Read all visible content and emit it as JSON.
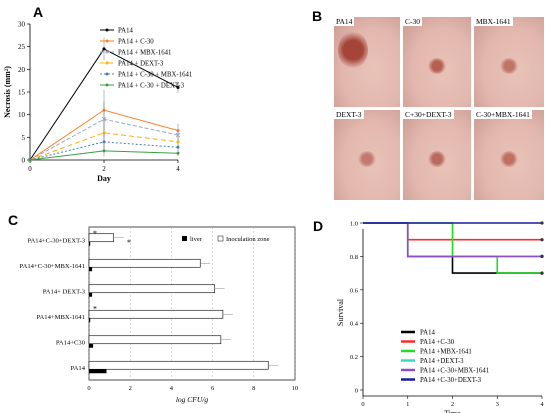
{
  "panel_letters": {
    "a": "A",
    "b": "B",
    "c": "C",
    "d": "D"
  },
  "chart_data": [
    {
      "panel": "A",
      "type": "line",
      "x": [
        0,
        2,
        4
      ],
      "xlabel": "Day",
      "ylabel": "Necrosis (mm²)",
      "ylim": [
        0,
        30
      ],
      "yticks": [
        "0",
        "5",
        "10",
        "15",
        "20",
        "25",
        "30"
      ],
      "xticks": [
        "0",
        "2",
        "4"
      ],
      "legend_position": "top-right",
      "series": [
        {
          "name": "PA14",
          "values": [
            0,
            24.5,
            16
          ],
          "color": "#000000",
          "dash": "",
          "marker": "circle"
        },
        {
          "name": "PA14 + C-30",
          "values": [
            0,
            11,
            6.5
          ],
          "color": "#ff7f27",
          "dash": "",
          "marker": "circle"
        },
        {
          "name": "PA14 + MBX-1641",
          "values": [
            0,
            9,
            5.5
          ],
          "color": "#9aa9c8",
          "dash": "4,2",
          "marker": "x"
        },
        {
          "name": "PA14 + DEXT-3",
          "values": [
            0,
            6,
            4
          ],
          "color": "#ffb000",
          "dash": "5,3",
          "marker": "circle"
        },
        {
          "name": "PA14 + C-30 + MBX-1641",
          "values": [
            0,
            4,
            2.8
          ],
          "color": "#4a7db8",
          "dash": "2,2",
          "marker": "circle"
        },
        {
          "name": "PA14 + C-30 + DEXT-3",
          "values": [
            0,
            2,
            1.5
          ],
          "color": "#3aa040",
          "dash": "",
          "marker": "circle"
        }
      ]
    },
    {
      "panel": "C",
      "type": "bar",
      "orientation": "horizontal",
      "categories": [
        "PA14+C-30+DEXT-3",
        "PA14+C-30+MBX-1641",
        "PA14+ DEXT-3",
        "PA14+MBX-1641",
        "PA14+C30",
        "PA14"
      ],
      "xlabel": "log CFU/g",
      "xlim": [
        0,
        10
      ],
      "xticks": [
        "0",
        "2",
        "4",
        "6",
        "8",
        "10"
      ],
      "legend_position": "top-right",
      "annotations": [
        "*",
        "*",
        "*"
      ],
      "series": [
        {
          "name": "liver",
          "color": "#000000",
          "values": [
            0.05,
            0.15,
            0.15,
            0.05,
            0.2,
            0.85
          ]
        },
        {
          "name": "Inoculation zone",
          "color": "#ffffff",
          "values": [
            1.2,
            5.4,
            6.1,
            6.5,
            6.4,
            8.7
          ]
        }
      ]
    },
    {
      "panel": "D",
      "type": "line",
      "step": true,
      "x": [
        0,
        1,
        2,
        3,
        4
      ],
      "xlabel": "Time",
      "ylabel": "Survival",
      "xlim": [
        0,
        4
      ],
      "ylim": [
        0,
        1.0
      ],
      "xticks": [
        "0",
        "1",
        "2",
        "3",
        "4"
      ],
      "yticks": [
        "0",
        "0.2",
        "0.4",
        "0.6",
        "0.8",
        "1.0"
      ],
      "legend_position": "bottom-center",
      "series": [
        {
          "name": "PA14",
          "color": "#000000",
          "steps": [
            [
              0,
              1.0
            ],
            [
              1,
              0.8
            ],
            [
              2,
              0.7
            ],
            [
              4,
              0.7
            ]
          ]
        },
        {
          "name": "PA14 +C-30",
          "color": "#ff2a2a",
          "steps": [
            [
              0,
              1.0
            ],
            [
              1,
              0.9
            ],
            [
              4,
              0.9
            ]
          ]
        },
        {
          "name": "PA14 +MBX-1641",
          "color": "#22dd22",
          "steps": [
            [
              0,
              1.0
            ],
            [
              2,
              0.8
            ],
            [
              3,
              0.7
            ],
            [
              4,
              0.7
            ]
          ]
        },
        {
          "name": "PA14 +DEXT-3",
          "color": "#33ddbb",
          "steps": [
            [
              0,
              1.0
            ],
            [
              1,
              0.8
            ],
            [
              4,
              0.8
            ]
          ]
        },
        {
          "name": "PA14 +C-30+MBX-1641",
          "color": "#8a4fc9",
          "steps": [
            [
              0,
              1.0
            ],
            [
              1,
              0.8
            ],
            [
              4,
              0.8
            ]
          ]
        },
        {
          "name": "PA14 +C-30+DEXT-3",
          "color": "#1a1aa0",
          "steps": [
            [
              0,
              1.0
            ],
            [
              4,
              1.0
            ]
          ]
        }
      ]
    }
  ],
  "photos": {
    "labels": [
      "PA14",
      "C-30",
      "MBX-1641",
      "DEXT-3",
      "C+30+DEXT-3",
      "C-30+MBX-1641"
    ],
    "wound_colors": [
      "#a5453a",
      "#b86050",
      "#c07466",
      "#c27a70",
      "#b86a5e",
      "#c07060"
    ],
    "skin_color": "#e2b7ae"
  }
}
